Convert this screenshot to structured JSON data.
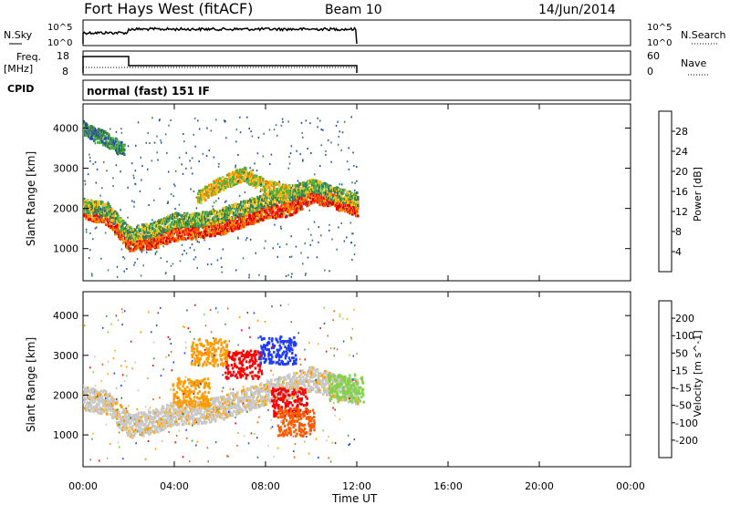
{
  "header": {
    "title": "Fort Hays West (fitACF)",
    "beam": "Beam 10",
    "date": "14/Jun/2014"
  },
  "noise_panel": {
    "left_label": "N.Sky",
    "right_label": "N.Search",
    "left_ticks": [
      "10^5",
      "10^0"
    ],
    "right_ticks": [
      "10^5",
      "10^0"
    ]
  },
  "freq_panel": {
    "left_label_1": "Freq.",
    "left_label_2": "[MHz]",
    "right_label": "Nave",
    "left_ticks": [
      "18",
      "8"
    ],
    "right_ticks": [
      "60",
      "0"
    ]
  },
  "cpid": {
    "label": "CPID",
    "text": "normal (fast) 151 IF"
  },
  "colors": {
    "power": [
      "#0000ff",
      "#1f4ea3",
      "#3a7a5a",
      "#4fb040",
      "#f0c020",
      "#f08c00",
      "#ff4400",
      "#e00000"
    ],
    "velocity": [
      "#ff0000",
      "#ff5a00",
      "#ff9a00",
      "#f5b52b",
      "#c8c8c8",
      "#82d34a",
      "#4a9a40",
      "#2a6a50",
      "#1e3cff"
    ]
  },
  "chart_data": [
    {
      "type": "heatmap",
      "name": "power",
      "ylabel": "Slant Range [km]",
      "yticks": [
        "4000",
        "3000",
        "2000",
        "1000"
      ],
      "ylim": [
        200,
        4600
      ],
      "colorbar_label": "Power [dB]",
      "colorbar_ticks": [
        "28",
        "24",
        "20",
        "16",
        "12",
        "8",
        "4"
      ],
      "bands": [
        {
          "points": [
            [
              0,
              1900
            ],
            [
              1,
              1750
            ],
            [
              2,
              1100
            ],
            [
              3,
              1150
            ],
            [
              4,
              1350
            ],
            [
              5,
              1400
            ],
            [
              6,
              1500
            ],
            [
              7,
              1700
            ],
            [
              8,
              1900
            ],
            [
              9,
              1950
            ],
            [
              10,
              2300
            ],
            [
              11,
              2150
            ],
            [
              12,
              1950
            ]
          ],
          "level": 6
        },
        {
          "points": [
            [
              0,
              2050
            ],
            [
              1,
              1950
            ],
            [
              2,
              1350
            ],
            [
              3,
              1450
            ],
            [
              4,
              1700
            ],
            [
              5,
              1700
            ],
            [
              6,
              1800
            ],
            [
              7,
              2000
            ],
            [
              8,
              2200
            ],
            [
              9,
              2350
            ],
            [
              10,
              2550
            ],
            [
              11,
              2350
            ],
            [
              12,
              2200
            ]
          ],
          "level": 3
        },
        {
          "points": [
            [
              5,
              2250
            ],
            [
              6,
              2600
            ],
            [
              7,
              2850
            ],
            [
              8,
              2500
            ],
            [
              9,
              2400
            ]
          ],
          "level": 4
        },
        {
          "points": [
            [
              0,
              3950
            ],
            [
              1,
              3700
            ],
            [
              1.8,
              3400
            ]
          ],
          "level": 2
        }
      ]
    },
    {
      "type": "heatmap",
      "name": "velocity",
      "ylabel": "Slant Range [km]",
      "yticks": [
        "4000",
        "3000",
        "2000",
        "1000"
      ],
      "ylim": [
        200,
        4600
      ],
      "colorbar_label": "Velocity [m s^-1]",
      "colorbar_ticks": [
        "200",
        "100",
        "50",
        "15",
        "-15",
        "-50",
        "-100",
        "-200"
      ],
      "blobs": [
        {
          "x": 7.0,
          "y": 2800,
          "level": 0
        },
        {
          "x": 8.5,
          "y": 3150,
          "level": 8
        },
        {
          "x": 9.0,
          "y": 1850,
          "level": 0
        },
        {
          "x": 4.7,
          "y": 2100,
          "level": 2
        },
        {
          "x": 5.5,
          "y": 3100,
          "level": 2
        },
        {
          "x": 11.5,
          "y": 2200,
          "level": 5
        },
        {
          "x": 9.3,
          "y": 1350,
          "level": 1
        }
      ]
    }
  ],
  "x_axis": {
    "label": "Time UT",
    "ticks": [
      "00:00",
      "04:00",
      "08:00",
      "12:00",
      "16:00",
      "20:00",
      "00:00"
    ],
    "data_end_hour": 12
  }
}
